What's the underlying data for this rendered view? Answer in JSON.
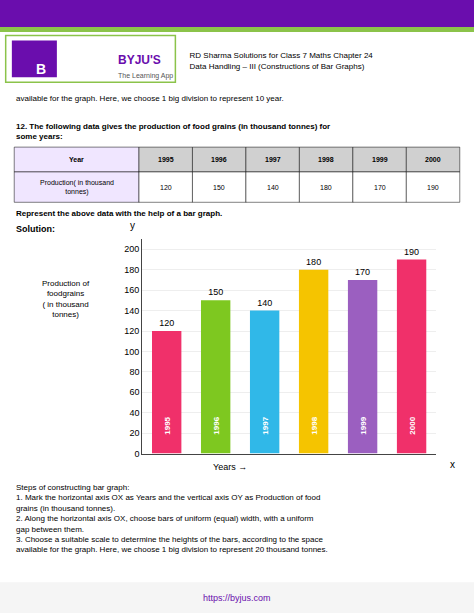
{
  "chart_data": {
    "type": "bar",
    "title": "RD Sharma Solutions for Class 7 Maths Chapter 24\nData Handling – III (Constructions of Bar Graphs)",
    "categories": [
      "1995",
      "1996",
      "1997",
      "1998",
      "1999",
      "2000"
    ],
    "values": [
      120,
      150,
      140,
      180,
      170,
      190
    ],
    "colors": [
      "#f0306a",
      "#7ec820",
      "#30b8e8",
      "#f5c400",
      "#9b5fc0",
      "#f0306a"
    ],
    "xlabel": "Years →",
    "ylabel": "Production of\nfoodgrains\n( in thousand\ntonnes)",
    "ylim": [
      0,
      210
    ],
    "yticks": [
      0,
      20,
      40,
      60,
      80,
      100,
      120,
      140,
      160,
      180,
      200
    ],
    "grid": true,
    "data_labels": true,
    "tick_labels": "y",
    "annotations": [
      "B",
      "BYJU'S",
      "The Learning App",
      "available for the graph. Here, we choose 1 big division to represent 10 year.",
      "12. The following data gives the production of food grains (in thousand tonnes) for\nsome years:",
      "Year",
      "Production( in thousand\ntonnes)",
      "Represent the above data with the help of a bar graph.",
      "Solution:",
      "x",
      "y",
      "Steps of constructing bar graph:\n1. Mark the horizontal axis OX as Years and the vertical axis OY as Production of food\ngrains (in thousand tonnes).\n2. Along the horizontal axis OX, choose bars of uniform (equal) width, with a uniform\ngap between them.\n3. Choose a suitable scale to determine the heights of the bars, according to the space\navailable for the graph. Here, we choose 1 big division to represent 20 thousand tonnes.",
      "https://byjus.com"
    ]
  }
}
